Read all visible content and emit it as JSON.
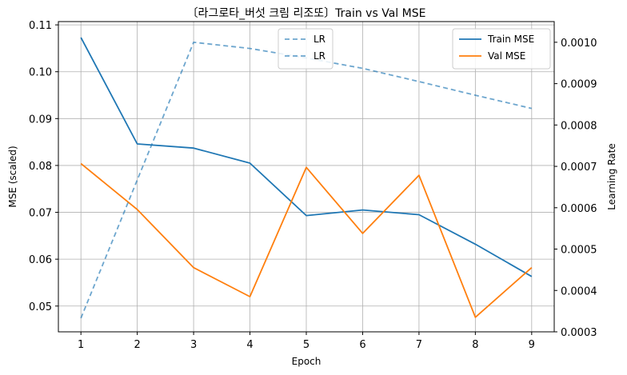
{
  "chart_data": {
    "type": "line",
    "title": "〔라그로타_버섯 크림 리조또〕Train vs Val MSE",
    "xlabel": "Epoch",
    "ylabel": "MSE (scaled)",
    "y2label": "Learning Rate",
    "x": [
      1,
      2,
      3,
      4,
      5,
      6,
      7,
      8,
      9
    ],
    "xticks": [
      "1",
      "2",
      "3",
      "4",
      "5",
      "6",
      "7",
      "8",
      "9"
    ],
    "ylim": [
      0.0445,
      0.1107
    ],
    "yticks": [
      0.05,
      0.06,
      0.07,
      0.08,
      0.09,
      0.1,
      0.11
    ],
    "ytick_labels": [
      "0.05",
      "0.06",
      "0.07",
      "0.08",
      "0.09",
      "0.10",
      "0.11"
    ],
    "y2lim": [
      0.0003,
      0.00105
    ],
    "y2ticks": [
      0.0003,
      0.0004,
      0.0005,
      0.0006,
      0.0007,
      0.0008,
      0.0009,
      0.001
    ],
    "y2tick_labels": [
      "0.0003",
      "0.0004",
      "0.0005",
      "0.0006",
      "0.0007",
      "0.0008",
      "0.0009",
      "0.0010"
    ],
    "grid": true,
    "series": [
      {
        "name": "Train MSE",
        "axis": "left",
        "color": "#1f77b4",
        "style": "solid",
        "values": [
          0.1073,
          0.0846,
          0.0837,
          0.0805,
          0.0693,
          0.0705,
          0.0695,
          0.0632,
          0.0563
        ]
      },
      {
        "name": "Val MSE",
        "axis": "left",
        "color": "#ff7f0e",
        "style": "solid",
        "values": [
          0.0804,
          0.0706,
          0.0582,
          0.052,
          0.0796,
          0.0655,
          0.0779,
          0.0476,
          0.0582
        ]
      },
      {
        "name": "LR",
        "axis": "right",
        "color": "#1f77b4",
        "style": "dashed",
        "opacity": 0.65,
        "values": [
          0.000333,
          0.000667,
          0.001,
          0.000985,
          0.000962,
          0.000937,
          0.000905,
          0.000872,
          0.00084
        ]
      }
    ],
    "legend_left": {
      "placement": "top-center",
      "entries": [
        "LR",
        "LR"
      ]
    },
    "legend_right": {
      "placement": "top-right",
      "entries": [
        "Train MSE",
        "Val MSE"
      ]
    }
  }
}
